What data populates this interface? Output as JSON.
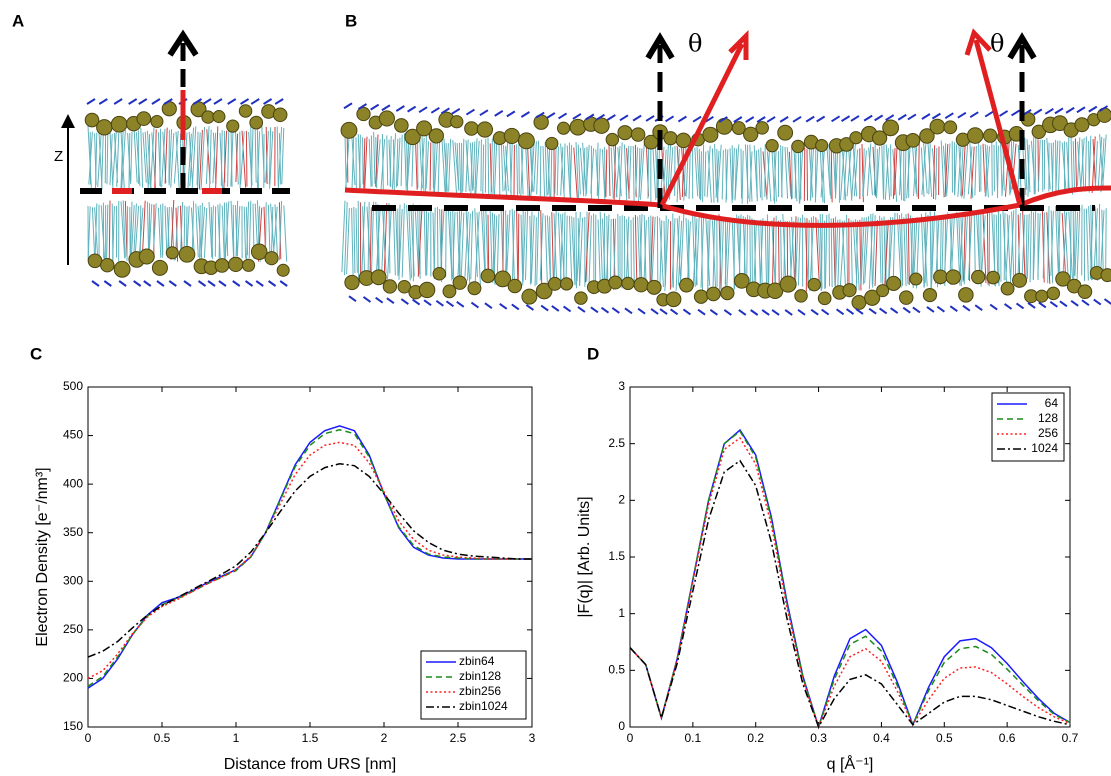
{
  "panels": [
    {
      "label": "A",
      "axis_label": "Z"
    },
    {
      "label": "B",
      "angle_labels": [
        "θ",
        "θ"
      ]
    }
  ],
  "chart_data": [
    {
      "type": "line",
      "label": "C",
      "xlabel": "Distance from URS  [nm]",
      "ylabel": "Electron Density [e⁻/nm³]",
      "xlim": [
        0,
        3
      ],
      "ylim": [
        150,
        500
      ],
      "xticks": [
        0,
        0.5,
        1,
        1.5,
        2,
        2.5,
        3
      ],
      "yticks": [
        150,
        200,
        250,
        300,
        350,
        400,
        450,
        500
      ],
      "legend": "lower right",
      "x": [
        0,
        0.1,
        0.2,
        0.3,
        0.4,
        0.5,
        0.6,
        0.7,
        0.8,
        0.9,
        1,
        1.1,
        1.2,
        1.3,
        1.4,
        1.5,
        1.6,
        1.7,
        1.8,
        1.9,
        2,
        2.1,
        2.2,
        2.3,
        2.4,
        2.5,
        2.6,
        2.7,
        2.8,
        2.9,
        3
      ],
      "series": [
        {
          "name": "zbin64",
          "color": "#1a1aff",
          "linestyle": "solid",
          "values": [
            190,
            200,
            220,
            245,
            265,
            278,
            283,
            290,
            298,
            305,
            312,
            325,
            350,
            385,
            420,
            443,
            455,
            460,
            455,
            430,
            390,
            355,
            335,
            327,
            324,
            323,
            323,
            323,
            323,
            323,
            323
          ]
        },
        {
          "name": "zbin128",
          "color": "#1a8a1a",
          "linestyle": "dashed",
          "values": [
            192,
            202,
            222,
            245,
            264,
            276,
            282,
            289,
            297,
            304,
            311,
            325,
            350,
            384,
            418,
            440,
            452,
            456,
            452,
            428,
            390,
            356,
            337,
            328,
            325,
            324,
            323,
            323,
            323,
            323,
            323
          ]
        },
        {
          "name": "zbin256",
          "color": "#ff2020",
          "linestyle": "dotted",
          "values": [
            200,
            208,
            225,
            246,
            263,
            274,
            281,
            289,
            297,
            304,
            312,
            326,
            350,
            380,
            410,
            430,
            440,
            443,
            440,
            422,
            392,
            362,
            343,
            332,
            327,
            325,
            324,
            323,
            323,
            323,
            323
          ]
        },
        {
          "name": "zbin1024",
          "color": "#000000",
          "linestyle": "dashdot",
          "values": [
            222,
            228,
            238,
            252,
            265,
            275,
            283,
            291,
            299,
            307,
            316,
            330,
            350,
            372,
            393,
            408,
            417,
            421,
            419,
            408,
            390,
            370,
            352,
            340,
            332,
            328,
            326,
            325,
            324,
            323,
            323
          ]
        }
      ]
    },
    {
      "type": "line",
      "label": "D",
      "xlabel": "q  [Å⁻¹]",
      "ylabel": "|F(q)| [Arb. Units]",
      "xlim": [
        0,
        0.7
      ],
      "ylim": [
        0,
        3
      ],
      "xticks": [
        0,
        0.1,
        0.2,
        0.3,
        0.4,
        0.5,
        0.6,
        0.7
      ],
      "yticks": [
        0,
        0.5,
        1,
        1.5,
        2,
        2.5,
        3
      ],
      "legend": "upper right",
      "x": [
        0,
        0.025,
        0.05,
        0.075,
        0.1,
        0.125,
        0.15,
        0.175,
        0.2,
        0.225,
        0.25,
        0.275,
        0.3,
        0.325,
        0.35,
        0.375,
        0.4,
        0.425,
        0.45,
        0.475,
        0.5,
        0.525,
        0.55,
        0.575,
        0.6,
        0.625,
        0.65,
        0.675,
        0.7
      ],
      "series": [
        {
          "name": "64",
          "color": "#1a1aff",
          "linestyle": "solid",
          "values": [
            0.7,
            0.55,
            0.08,
            0.6,
            1.3,
            2.0,
            2.5,
            2.62,
            2.4,
            1.85,
            1.1,
            0.45,
            0.0,
            0.45,
            0.78,
            0.86,
            0.72,
            0.4,
            0.02,
            0.35,
            0.62,
            0.76,
            0.78,
            0.7,
            0.56,
            0.4,
            0.25,
            0.12,
            0.04
          ]
        },
        {
          "name": "128",
          "color": "#1a8a1a",
          "linestyle": "dashed",
          "values": [
            0.7,
            0.55,
            0.08,
            0.6,
            1.3,
            2.0,
            2.5,
            2.61,
            2.38,
            1.83,
            1.08,
            0.44,
            0.0,
            0.42,
            0.73,
            0.8,
            0.67,
            0.37,
            0.02,
            0.32,
            0.57,
            0.69,
            0.71,
            0.64,
            0.51,
            0.37,
            0.23,
            0.11,
            0.04
          ]
        },
        {
          "name": "256",
          "color": "#ff2020",
          "linestyle": "dotted",
          "values": [
            0.7,
            0.55,
            0.08,
            0.59,
            1.28,
            1.96,
            2.45,
            2.55,
            2.32,
            1.78,
            1.04,
            0.42,
            0.0,
            0.36,
            0.62,
            0.69,
            0.58,
            0.32,
            0.02,
            0.24,
            0.43,
            0.52,
            0.53,
            0.48,
            0.38,
            0.27,
            0.17,
            0.09,
            0.03
          ]
        },
        {
          "name": "1024",
          "color": "#000000",
          "linestyle": "dashdot",
          "values": [
            0.7,
            0.55,
            0.08,
            0.56,
            1.2,
            1.83,
            2.25,
            2.35,
            2.13,
            1.63,
            0.95,
            0.38,
            0.0,
            0.25,
            0.42,
            0.46,
            0.38,
            0.2,
            0.02,
            0.12,
            0.22,
            0.27,
            0.27,
            0.24,
            0.19,
            0.14,
            0.09,
            0.05,
            0.02
          ]
        }
      ]
    }
  ]
}
